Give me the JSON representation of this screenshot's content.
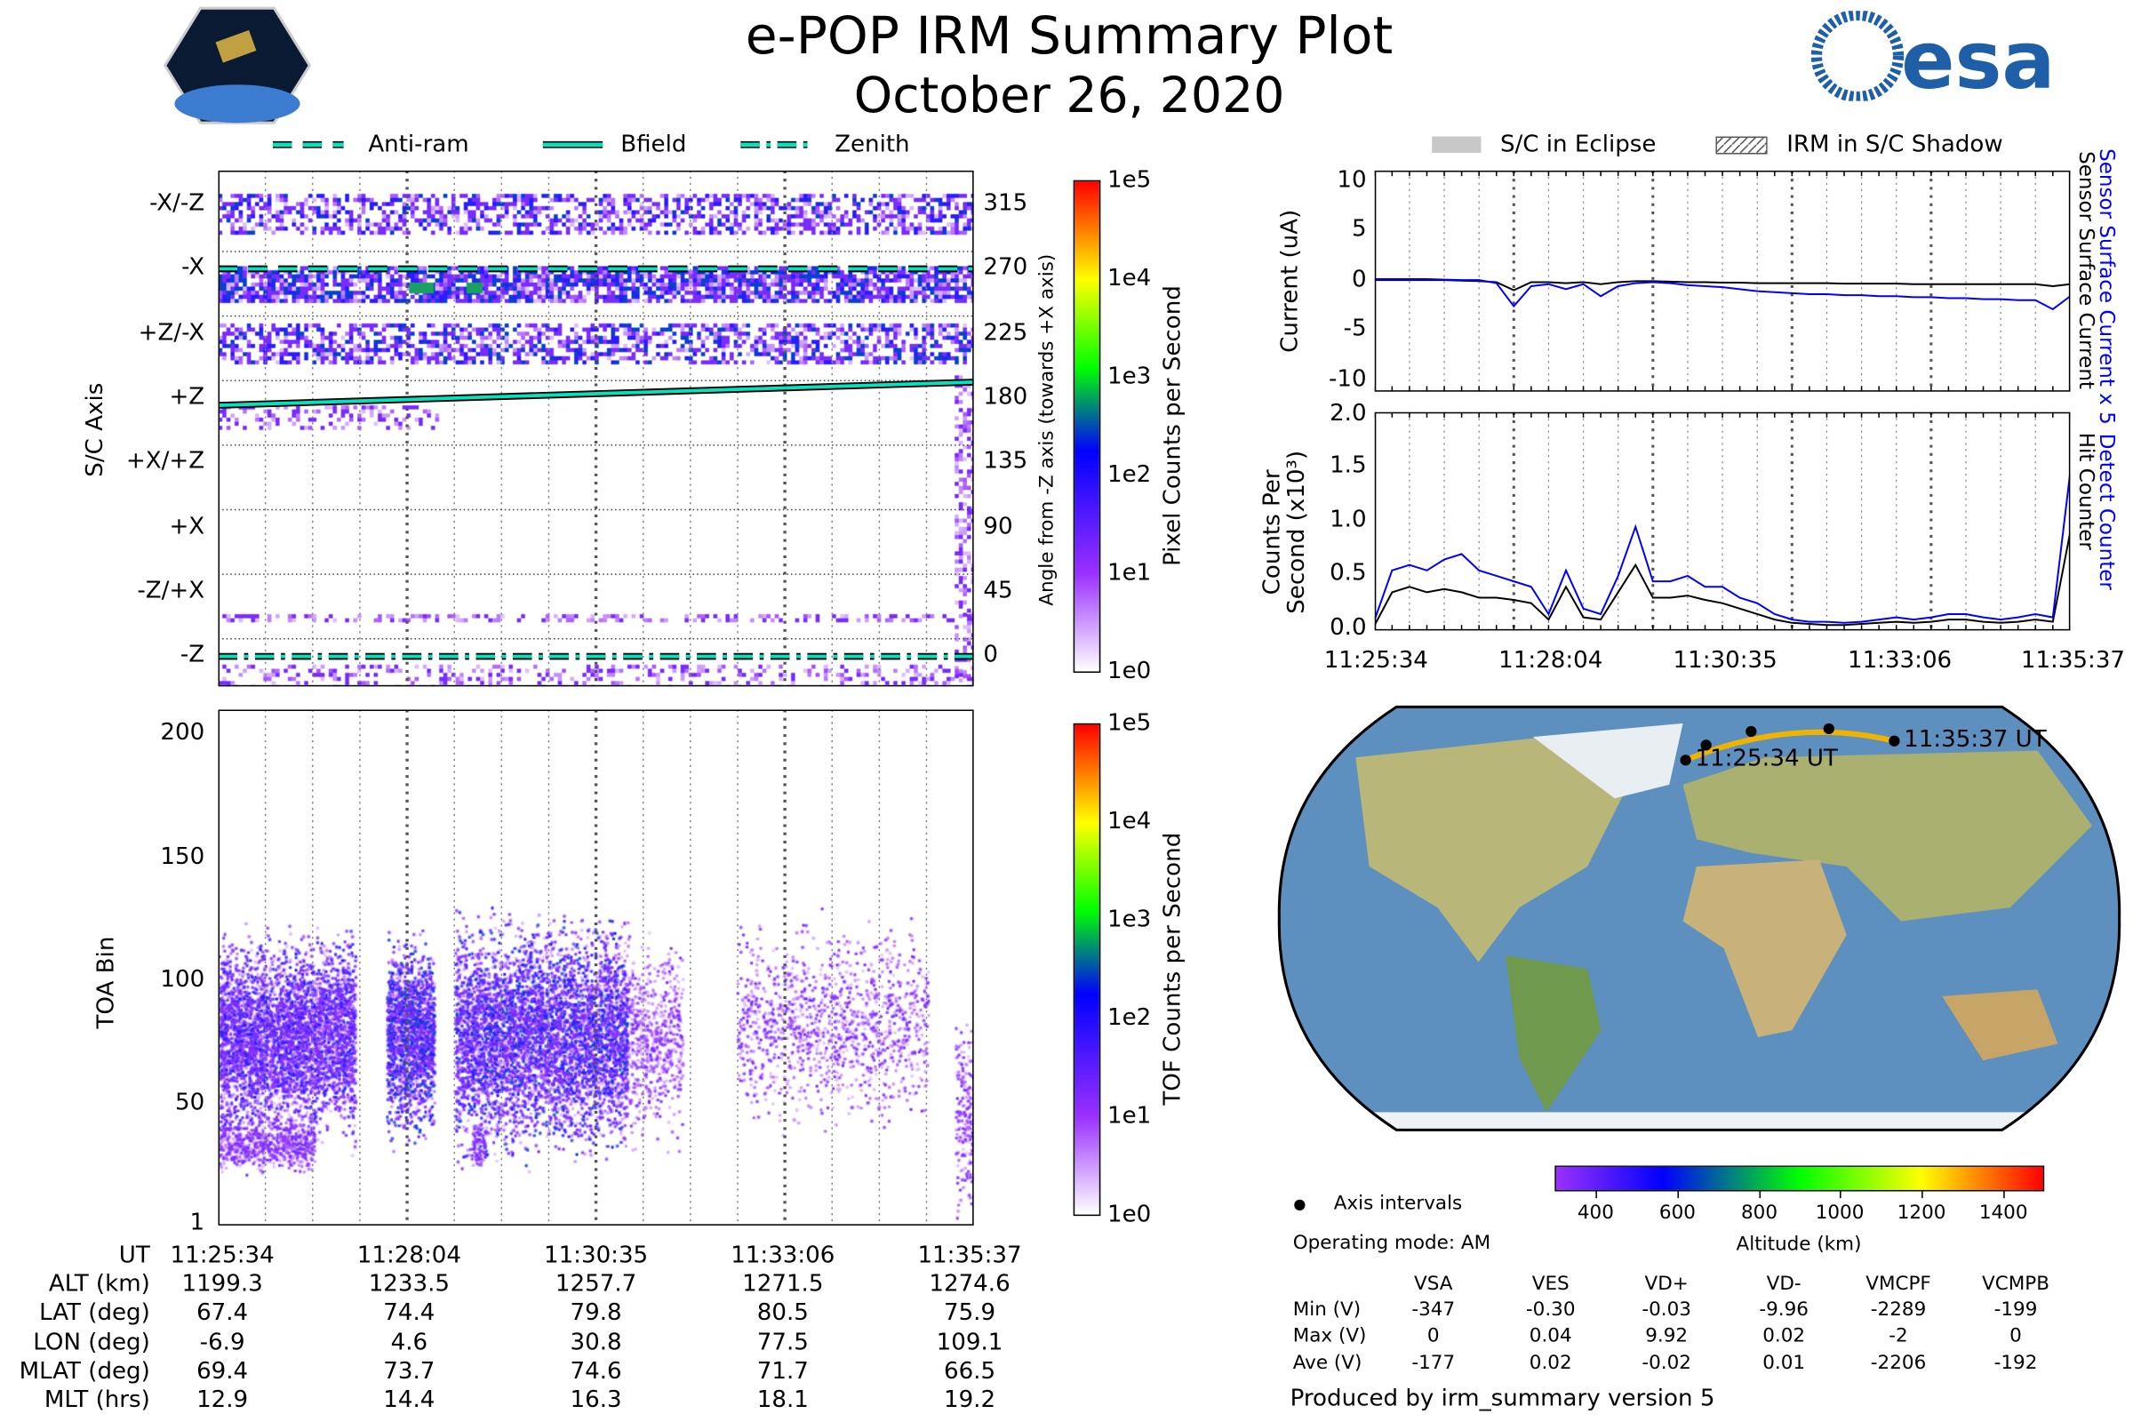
{
  "header": {
    "title": "e-POP IRM Summary Plot",
    "date": "October 26, 2020",
    "logo_left": "CASSIOPE",
    "logo_right": "esa"
  },
  "legend_left": [
    {
      "label": "Anti-ram",
      "style": "dashed"
    },
    {
      "label": "Bfield",
      "style": "solid"
    },
    {
      "label": "Zenith",
      "style": "dash-dot"
    }
  ],
  "legend_right": [
    {
      "label": "S/C in Eclipse",
      "style": "grey-fill"
    },
    {
      "label": "IRM in S/C Shadow",
      "style": "hatched"
    }
  ],
  "colors": {
    "line_blue": "#0000ff",
    "line_black": "#000000",
    "ref_line": "#00e5c0",
    "track": "#f0b400"
  },
  "chart_data": [
    {
      "type": "heatmap",
      "name": "pixel-spectrogram",
      "ylabel": "S/C Axis",
      "ylabel_right": "Angle from -Z axis (towards +X axis)",
      "ytick_labels": [
        "-X/-Z",
        "-X",
        "+Z/-X",
        "+Z",
        "+X/+Z",
        "+X",
        "-Z/+X",
        "-Z"
      ],
      "yticks_right": [
        "315",
        "270",
        "225",
        "180",
        "135",
        "90",
        "45",
        "0"
      ],
      "colorbar": {
        "label": "Pixel Counts per Second",
        "ticks": [
          "1e5",
          "1e4",
          "1e3",
          "1e2",
          "1e1",
          "1e0"
        ]
      }
    },
    {
      "type": "heatmap",
      "name": "tof-spectrogram",
      "ylabel": "TOA Bin",
      "yticks": [
        "200",
        "150",
        "100",
        "50",
        "1"
      ],
      "ylim": [
        1,
        210
      ],
      "colorbar": {
        "label": "TOF Counts per Second",
        "ticks": [
          "1e5",
          "1e4",
          "1e3",
          "1e2",
          "1e1",
          "1e0"
        ]
      }
    },
    {
      "type": "line",
      "name": "current",
      "ylabel": "Current (uA)",
      "ylim": [
        -11,
        11
      ],
      "yticks": [
        "10",
        "5",
        "0",
        "-5",
        "-10"
      ],
      "x_step_min": 0.25,
      "series": [
        {
          "name": "Sensor Surface Current x 5",
          "color": "#0000ff",
          "values": [
            0.2,
            0.2,
            0.2,
            0.2,
            0.15,
            0.1,
            0.1,
            -0.2,
            -2.5,
            -0.5,
            -0.3,
            -0.8,
            -0.3,
            -1.5,
            -0.5,
            -0.2,
            -0.1,
            -0.2,
            -0.4,
            -0.5,
            -0.6,
            -0.8,
            -1.0,
            -1.1,
            -1.2,
            -1.3,
            -1.3,
            -1.4,
            -1.4,
            -1.5,
            -1.5,
            -1.6,
            -1.6,
            -1.7,
            -1.7,
            -1.8,
            -1.8,
            -1.9,
            -1.9,
            -2.8,
            -1.5
          ]
        },
        {
          "name": "Sensor Surface Current",
          "color": "#000000",
          "values": [
            0.1,
            0.1,
            0.1,
            0.1,
            0.1,
            0.05,
            0.0,
            -0.1,
            -0.9,
            -0.1,
            -0.1,
            -0.2,
            -0.1,
            -0.3,
            -0.1,
            0.0,
            0.0,
            -0.05,
            -0.1,
            -0.1,
            -0.15,
            -0.15,
            -0.2,
            -0.2,
            -0.2,
            -0.2,
            -0.2,
            -0.25,
            -0.25,
            -0.25,
            -0.25,
            -0.3,
            -0.3,
            -0.3,
            -0.3,
            -0.3,
            -0.3,
            -0.3,
            -0.3,
            -0.5,
            -0.3
          ]
        }
      ]
    },
    {
      "type": "line",
      "name": "counts",
      "ylabel": "Counts Per Second (x10³)",
      "ylim": [
        0,
        2.0
      ],
      "yticks": [
        "2.0",
        "1.5",
        "1.0",
        "0.5",
        "0.0"
      ],
      "xtick_labels": [
        "11:25:34",
        "11:28:04",
        "11:30:35",
        "11:33:06",
        "11:35:37"
      ],
      "x_step_min": 0.25,
      "series": [
        {
          "name": "Detect Counter",
          "color": "#0000ff",
          "values": [
            0.1,
            0.55,
            0.6,
            0.55,
            0.65,
            0.7,
            0.55,
            0.5,
            0.45,
            0.4,
            0.15,
            0.55,
            0.2,
            0.15,
            0.5,
            0.95,
            0.45,
            0.45,
            0.5,
            0.4,
            0.4,
            0.3,
            0.25,
            0.15,
            0.1,
            0.08,
            0.08,
            0.07,
            0.08,
            0.1,
            0.12,
            0.1,
            0.12,
            0.15,
            0.15,
            0.12,
            0.1,
            0.12,
            0.15,
            0.12,
            1.45
          ]
        },
        {
          "name": "Hit Counter",
          "color": "#000000",
          "values": [
            0.05,
            0.35,
            0.4,
            0.35,
            0.38,
            0.35,
            0.3,
            0.3,
            0.28,
            0.25,
            0.1,
            0.4,
            0.12,
            0.1,
            0.35,
            0.6,
            0.3,
            0.3,
            0.32,
            0.28,
            0.25,
            0.2,
            0.15,
            0.1,
            0.07,
            0.06,
            0.05,
            0.05,
            0.06,
            0.07,
            0.08,
            0.07,
            0.08,
            0.1,
            0.1,
            0.08,
            0.07,
            0.08,
            0.1,
            0.08,
            0.9
          ]
        }
      ]
    }
  ],
  "map": {
    "start_label": "11:25:34 UT",
    "end_label": "11:35:37 UT",
    "legend_dot_label": "Axis intervals",
    "operating_mode": "Operating mode: AM",
    "altitude_colorbar": {
      "label": "Altitude (km)",
      "ticks": [
        "400",
        "600",
        "800",
        "1000",
        "1200",
        "1400"
      ]
    }
  },
  "ephemeris": {
    "rows": [
      {
        "label": "UT",
        "values": [
          "11:25:34",
          "11:28:04",
          "11:30:35",
          "11:33:06",
          "11:35:37"
        ]
      },
      {
        "label": "ALT (km)",
        "values": [
          "1199.3",
          "1233.5",
          "1257.7",
          "1271.5",
          "1274.6"
        ]
      },
      {
        "label": "LAT (deg)",
        "values": [
          "67.4",
          "74.4",
          "79.8",
          "80.5",
          "75.9"
        ]
      },
      {
        "label": "LON (deg)",
        "values": [
          "-6.9",
          "4.6",
          "30.8",
          "77.5",
          "109.1"
        ]
      },
      {
        "label": "MLAT (deg)",
        "values": [
          "69.4",
          "73.7",
          "74.6",
          "71.7",
          "66.5"
        ]
      },
      {
        "label": "MLT (hrs)",
        "values": [
          "12.9",
          "14.4",
          "16.3",
          "18.1",
          "19.2"
        ]
      }
    ]
  },
  "voltages": {
    "columns": [
      "VSA",
      "VES",
      "VD+",
      "VD-",
      "VMCPF",
      "VCMPB"
    ],
    "rows": [
      {
        "label": "Min (V)",
        "values": [
          "-347",
          "-0.30",
          "-0.03",
          "-9.96",
          "-2289",
          "-199"
        ]
      },
      {
        "label": "Max (V)",
        "values": [
          "0",
          "0.04",
          "9.92",
          "0.02",
          "-2",
          "0"
        ]
      },
      {
        "label": "Ave (V)",
        "values": [
          "-177",
          "0.02",
          "-0.02",
          "0.01",
          "-2206",
          "-192"
        ]
      }
    ]
  },
  "footer": "Produced by irm_summary version 5"
}
